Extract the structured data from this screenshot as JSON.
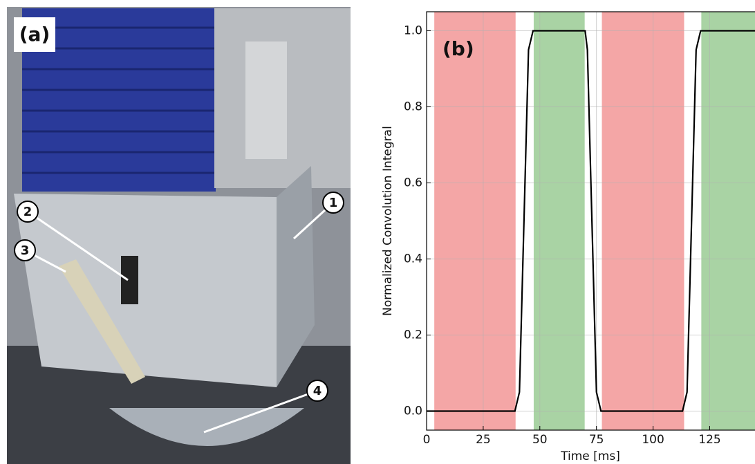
{
  "photo": {
    "label": "(a)",
    "markers": [
      "1",
      "2",
      "3",
      "4"
    ]
  },
  "chart_data": {
    "type": "line",
    "annotation": "(b)",
    "xlabel": "Time [ms]",
    "ylabel": "Normalized Convolution Integral",
    "x": [
      0,
      39,
      41,
      45,
      47,
      70,
      71,
      75,
      77,
      113,
      115,
      119,
      121,
      145
    ],
    "values": [
      0,
      0,
      0.05,
      0.95,
      1,
      1,
      0.95,
      0.05,
      0,
      0,
      0.05,
      0.95,
      1,
      1
    ],
    "color": "#000000",
    "spans": [
      {
        "start": 3.4,
        "end": 39.3,
        "color": "#f4a6a6"
      },
      {
        "start": 47.3,
        "end": 69.8,
        "color": "#a9d3a4"
      },
      {
        "start": 77.4,
        "end": 113.7,
        "color": "#f4a6a6"
      },
      {
        "start": 121.3,
        "end": 145,
        "color": "#a9d3a4"
      }
    ],
    "xlim": [
      0,
      145
    ],
    "ylim": [
      -0.05,
      1.05
    ],
    "xticks": [
      0,
      25,
      50,
      75,
      100,
      125
    ],
    "yticks": [
      {
        "value": 0,
        "label": "0.0"
      },
      0.2,
      0.4,
      0.6,
      0.8,
      {
        "value": 1,
        "label": "1.0"
      }
    ],
    "grid": true
  }
}
